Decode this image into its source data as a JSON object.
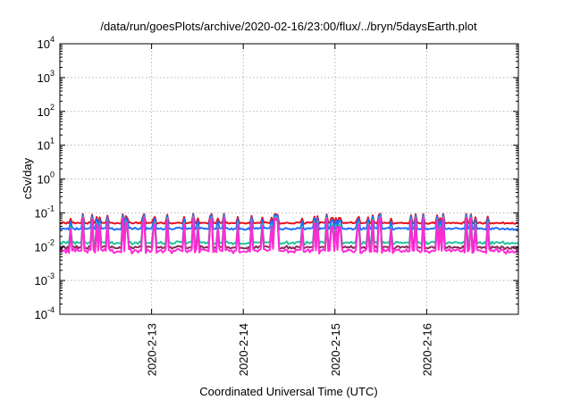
{
  "chart_data": {
    "type": "line",
    "title": "/data/run/goesPlots/archive/2020-02-16/23:00/flux/../bryn/5daysEarth.plot",
    "xlabel": "Coordinated Universal Time (UTC)",
    "ylabel": "cSv/day",
    "x_range": [
      "2020-02-12",
      "2020-02-17"
    ],
    "x_ticks": [
      "2020-2-13",
      "2020-2-14",
      "2020-2-15",
      "2020-2-16"
    ],
    "yscale": "log",
    "ylim": [
      0.0001,
      10000
    ],
    "y_ticks": [
      {
        "base": "10",
        "exp": "-4"
      },
      {
        "base": "10",
        "exp": "-3"
      },
      {
        "base": "10",
        "exp": "-2"
      },
      {
        "base": "10",
        "exp": "-1"
      },
      {
        "base": "10",
        "exp": "0"
      },
      {
        "base": "10",
        "exp": "1"
      },
      {
        "base": "10",
        "exp": "2"
      },
      {
        "base": "10",
        "exp": "3"
      },
      {
        "base": "10",
        "exp": "4"
      }
    ],
    "grid": true,
    "legend": "none",
    "series": [
      {
        "color": "#e8101b",
        "baseline": 0.05,
        "spike": 0.095,
        "noise": 0.07
      },
      {
        "color": "#1f6fff",
        "baseline": 0.034,
        "spike": 0.09,
        "noise": 0.09
      },
      {
        "color": "#23c4a0",
        "baseline": 0.013,
        "spike": 0.08,
        "noise": 0.12
      },
      {
        "color": "#8a2b5a",
        "baseline": 0.0095,
        "spike": 0.07,
        "noise": 0.12
      },
      {
        "color": "#ff2bd6",
        "baseline": 0.0075,
        "spike": 0.075,
        "noise": 0.18
      }
    ]
  }
}
